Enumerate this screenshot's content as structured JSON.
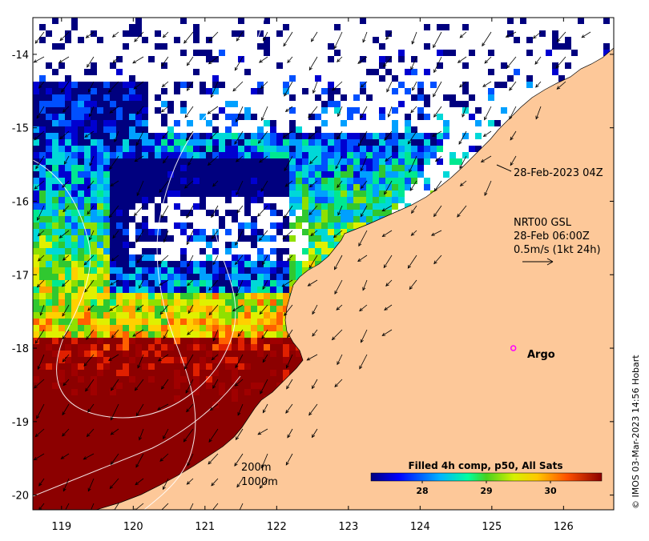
{
  "map": {
    "lon_ticks": [
      "119",
      "120",
      "121",
      "122",
      "123",
      "124",
      "125",
      "126"
    ],
    "lat_ticks": [
      "-14",
      "-15",
      "-16",
      "-17",
      "-18",
      "-19",
      "-20"
    ],
    "lon_range": [
      118.6,
      126.7
    ],
    "lat_range": [
      -20.2,
      -13.5
    ],
    "land_color": "#fdc899",
    "ocean_color": "#ffffff"
  },
  "annotations": {
    "coastline_time": "28-Feb-2023 04Z",
    "current_product": "NRT00 GSL",
    "current_time": "28-Feb 06:00Z",
    "current_scale": "0.5m/s (1kt 24h)",
    "argo_label": "Argo",
    "contour_200": "200m",
    "contour_1000": "1000m",
    "credit": "© IMOS 03-Mar-2023 14:56 Hobart"
  },
  "colorbar": {
    "title": "Filled 4h comp, p50, All Sats",
    "ticks": [
      {
        "value": 28,
        "label": "28"
      },
      {
        "value": 29,
        "label": "29"
      },
      {
        "value": 30,
        "label": "30"
      }
    ],
    "range": [
      27.2,
      30.8
    ]
  },
  "argo": {
    "lon": 125.3,
    "lat": -18.0,
    "color": "#ff00ff"
  }
}
